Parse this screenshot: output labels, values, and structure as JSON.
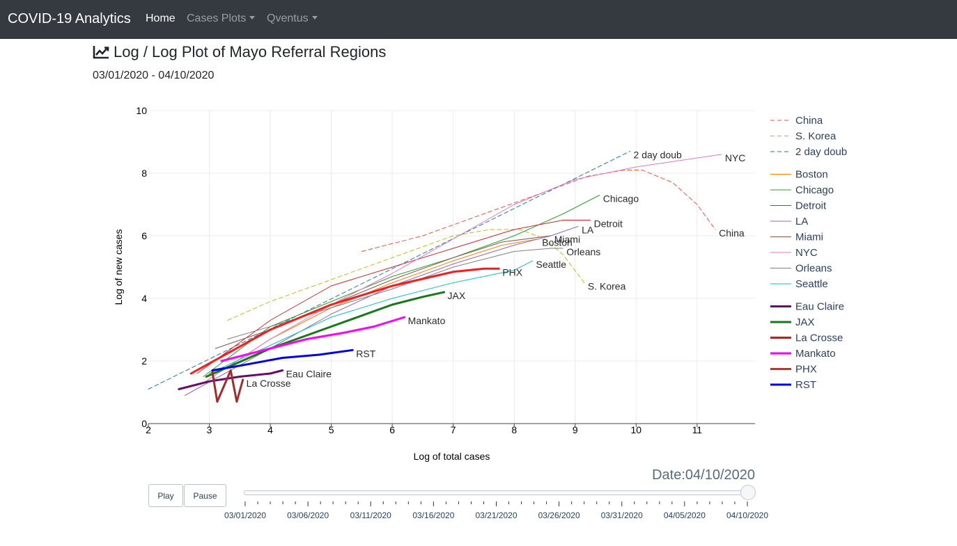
{
  "nav": {
    "brand": "COVID-19 Analytics",
    "items": [
      {
        "label": "Home",
        "active": true,
        "dropdown": false
      },
      {
        "label": "Cases Plots",
        "active": false,
        "dropdown": true
      },
      {
        "label": "Qventus",
        "active": false,
        "dropdown": true
      }
    ]
  },
  "page": {
    "title": "Log / Log Plot of Mayo Referral Regions",
    "title_icon": "line-chart-icon",
    "date_range": "03/01/2020 - 04/10/2020"
  },
  "controls": {
    "play_label": "Play",
    "pause_label": "Pause",
    "slider_label": "Date:04/10/2020",
    "slider_value": "04/10/2020",
    "slider_ticks": [
      "03/01/2020",
      "03/06/2020",
      "03/11/2020",
      "03/16/2020",
      "03/21/2020",
      "03/26/2020",
      "03/31/2020",
      "04/05/2020",
      "04/10/2020"
    ]
  },
  "chart_data": {
    "type": "line",
    "title": "",
    "xlabel": "Log of total cases",
    "ylabel": "Log of new cases",
    "xlim": [
      2,
      11.95
    ],
    "ylim": [
      0,
      10
    ],
    "xticks": [
      2,
      3,
      4,
      5,
      6,
      7,
      8,
      9,
      10,
      11
    ],
    "yticks": [
      0,
      2,
      4,
      6,
      8,
      10
    ],
    "grid": true,
    "legend_position": "right",
    "series": [
      {
        "name": "China",
        "color": "#ef553b",
        "dash": true,
        "width": 1,
        "end_label": "China",
        "x": [
          5.5,
          6.5,
          7.5,
          8.5,
          9.2,
          9.8,
          10.1,
          10.6,
          11.0,
          11.3
        ],
        "y": [
          5.5,
          6.0,
          6.7,
          7.4,
          7.9,
          8.1,
          8.1,
          7.7,
          7.0,
          6.2
        ]
      },
      {
        "name": "S. Korea",
        "color": "#bcbd22",
        "dash": true,
        "width": 1,
        "end_label": "S. Korea",
        "x": [
          3.3,
          4.0,
          5.0,
          6.0,
          7.0,
          7.6,
          8.1,
          8.5,
          8.8,
          9.15
        ],
        "y": [
          3.3,
          3.9,
          4.6,
          5.3,
          6.0,
          6.2,
          6.2,
          5.9,
          5.4,
          4.5
        ]
      },
      {
        "name": "2 day doub",
        "color": "#1f77b4",
        "dash": true,
        "width": 1,
        "end_label": "2 day doub",
        "x": [
          2.0,
          9.9
        ],
        "y": [
          1.1,
          8.7
        ]
      },
      {
        "name": "Boston",
        "color": "#ff7f0e",
        "dash": false,
        "width": 1,
        "end_label": "Boston",
        "x": [
          2.9,
          4.0,
          5.0,
          6.0,
          7.0,
          7.8,
          8.4
        ],
        "y": [
          1.3,
          2.7,
          3.7,
          4.5,
          5.2,
          5.7,
          5.9
        ]
      },
      {
        "name": "Chicago",
        "color": "#2ca02c",
        "dash": false,
        "width": 1,
        "end_label": "Chicago",
        "x": [
          2.9,
          4.0,
          5.0,
          6.0,
          7.0,
          8.0,
          8.8,
          9.4
        ],
        "y": [
          1.5,
          3.1,
          3.9,
          4.7,
          5.3,
          6.0,
          6.7,
          7.3
        ]
      },
      {
        "name": "Detroit",
        "color": "#d62728",
        "dash": false,
        "width": 1,
        "end_label": "Detroit",
        "x": [
          2.8,
          4.0,
          5.0,
          6.0,
          7.0,
          8.0,
          8.8,
          9.25
        ],
        "y": [
          1.6,
          3.3,
          4.4,
          5.0,
          5.6,
          6.2,
          6.5,
          6.5
        ]
      },
      {
        "name": "LA",
        "color": "#9467bd",
        "dash": false,
        "width": 1,
        "end_label": "LA",
        "x": [
          2.6,
          4.0,
          5.0,
          6.0,
          7.0,
          8.0,
          8.6,
          9.05
        ],
        "y": [
          0.9,
          2.4,
          3.5,
          4.4,
          5.1,
          5.7,
          6.0,
          6.3
        ]
      },
      {
        "name": "Miami",
        "color": "#8c564b",
        "dash": false,
        "width": 1,
        "end_label": "Miami",
        "x": [
          3.1,
          4.0,
          5.0,
          6.0,
          7.0,
          7.8,
          8.6
        ],
        "y": [
          2.4,
          3.0,
          3.8,
          4.6,
          5.3,
          5.8,
          6.0
        ]
      },
      {
        "name": "NYC",
        "color": "#e377c2",
        "dash": false,
        "width": 1,
        "end_label": "NYC",
        "x": [
          2.9,
          4.0,
          5.0,
          6.0,
          7.0,
          8.0,
          9.0,
          10.0,
          11.4
        ],
        "y": [
          1.3,
          2.7,
          3.8,
          4.8,
          5.9,
          7.0,
          7.8,
          8.2,
          8.6
        ]
      },
      {
        "name": "Orleans",
        "color": "#7f7f7f",
        "dash": false,
        "width": 1,
        "end_label": "Orleans",
        "x": [
          3.3,
          4.0,
          5.0,
          6.0,
          7.0,
          8.0,
          8.6,
          8.8
        ],
        "y": [
          2.7,
          3.1,
          3.7,
          4.3,
          5.0,
          5.5,
          5.6,
          5.6
        ]
      },
      {
        "name": "Seattle",
        "color": "#17becf",
        "dash": false,
        "width": 1,
        "end_label": "Seattle",
        "x": [
          3.0,
          4.0,
          5.0,
          6.0,
          7.0,
          8.0,
          8.3
        ],
        "y": [
          1.6,
          2.5,
          3.4,
          4.0,
          4.5,
          4.9,
          5.2
        ]
      },
      {
        "name": "Eau Claire",
        "color": "#6a0a6a",
        "dash": false,
        "width": 3,
        "end_label": "Eau Claire",
        "x": [
          2.5,
          3.0,
          3.5,
          4.0,
          4.2
        ],
        "y": [
          1.1,
          1.35,
          1.5,
          1.6,
          1.7
        ]
      },
      {
        "name": "JAX",
        "color": "#167816",
        "dash": false,
        "width": 3,
        "end_label": "JAX",
        "x": [
          2.95,
          4.0,
          5.0,
          6.0,
          6.5,
          6.85
        ],
        "y": [
          1.5,
          2.4,
          3.1,
          3.8,
          4.05,
          4.2
        ]
      },
      {
        "name": "La Crosse",
        "color": "#a52a2a",
        "dash": false,
        "width": 3,
        "end_label": "La Crosse",
        "x": [
          3.05,
          3.13,
          3.35,
          3.45,
          3.55
        ],
        "y": [
          1.65,
          0.7,
          1.7,
          0.7,
          1.4
        ]
      },
      {
        "name": "Mankato",
        "color": "#ff00ff",
        "dash": false,
        "width": 3,
        "end_label": "Mankato",
        "x": [
          3.2,
          4.0,
          4.6,
          5.2,
          5.7,
          6.2
        ],
        "y": [
          2.0,
          2.4,
          2.7,
          2.9,
          3.1,
          3.4
        ]
      },
      {
        "name": "PHX",
        "color": "#ff1a1a",
        "dash": false,
        "width": 3,
        "end_label": "PHX",
        "x": [
          2.7,
          4.0,
          5.0,
          6.0,
          7.0,
          7.5,
          7.75
        ],
        "y": [
          1.6,
          3.0,
          3.8,
          4.4,
          4.85,
          4.95,
          4.95
        ]
      },
      {
        "name": "RST",
        "color": "#0000ee",
        "dash": false,
        "width": 3,
        "end_label": "RST",
        "x": [
          3.05,
          3.5,
          4.2,
          4.8,
          5.35
        ],
        "y": [
          1.7,
          1.85,
          2.1,
          2.2,
          2.35
        ]
      }
    ]
  }
}
